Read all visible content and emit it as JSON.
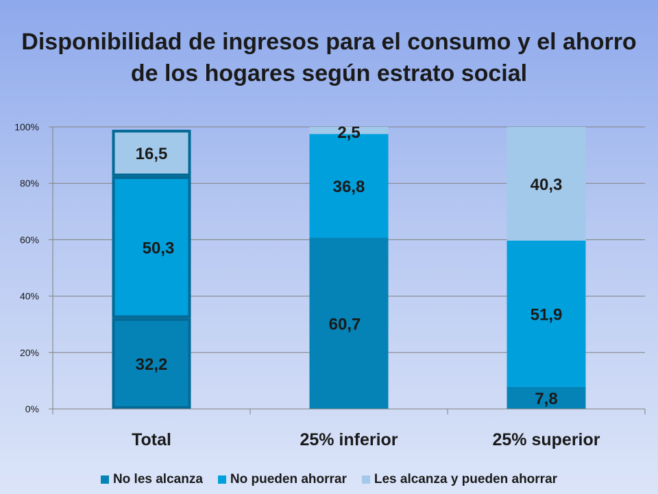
{
  "chart_data": {
    "type": "bar",
    "stacked": true,
    "title": "Disponibilidad de ingresos para el consumo y el ahorro de los hogares según estrato social",
    "categories": [
      "Total",
      "25% inferior",
      "25% superior"
    ],
    "series": [
      {
        "name": "No les alcanza",
        "values": [
          32.2,
          60.7,
          7.8
        ],
        "labels": [
          "32,2",
          "60,7",
          "7,8"
        ],
        "color": "#0583b6"
      },
      {
        "name": "No pueden ahorrar",
        "values": [
          50.3,
          36.8,
          51.9
        ],
        "labels": [
          "50,3",
          "36,8",
          "51,9"
        ],
        "color": "#00a0dc"
      },
      {
        "name": "Les alcanza y pueden ahorrar",
        "values": [
          16.5,
          2.5,
          40.3
        ],
        "labels": [
          "16,5",
          "2,5",
          "40,3"
        ],
        "color": "#a3c9ea"
      }
    ],
    "y_ticks": [
      "0%",
      "20%",
      "40%",
      "60%",
      "80%",
      "100%"
    ],
    "ylim": [
      0,
      100
    ],
    "grid": true,
    "legend": "bottom",
    "highlight_category": "Total",
    "highlight_color": "#036a96"
  }
}
